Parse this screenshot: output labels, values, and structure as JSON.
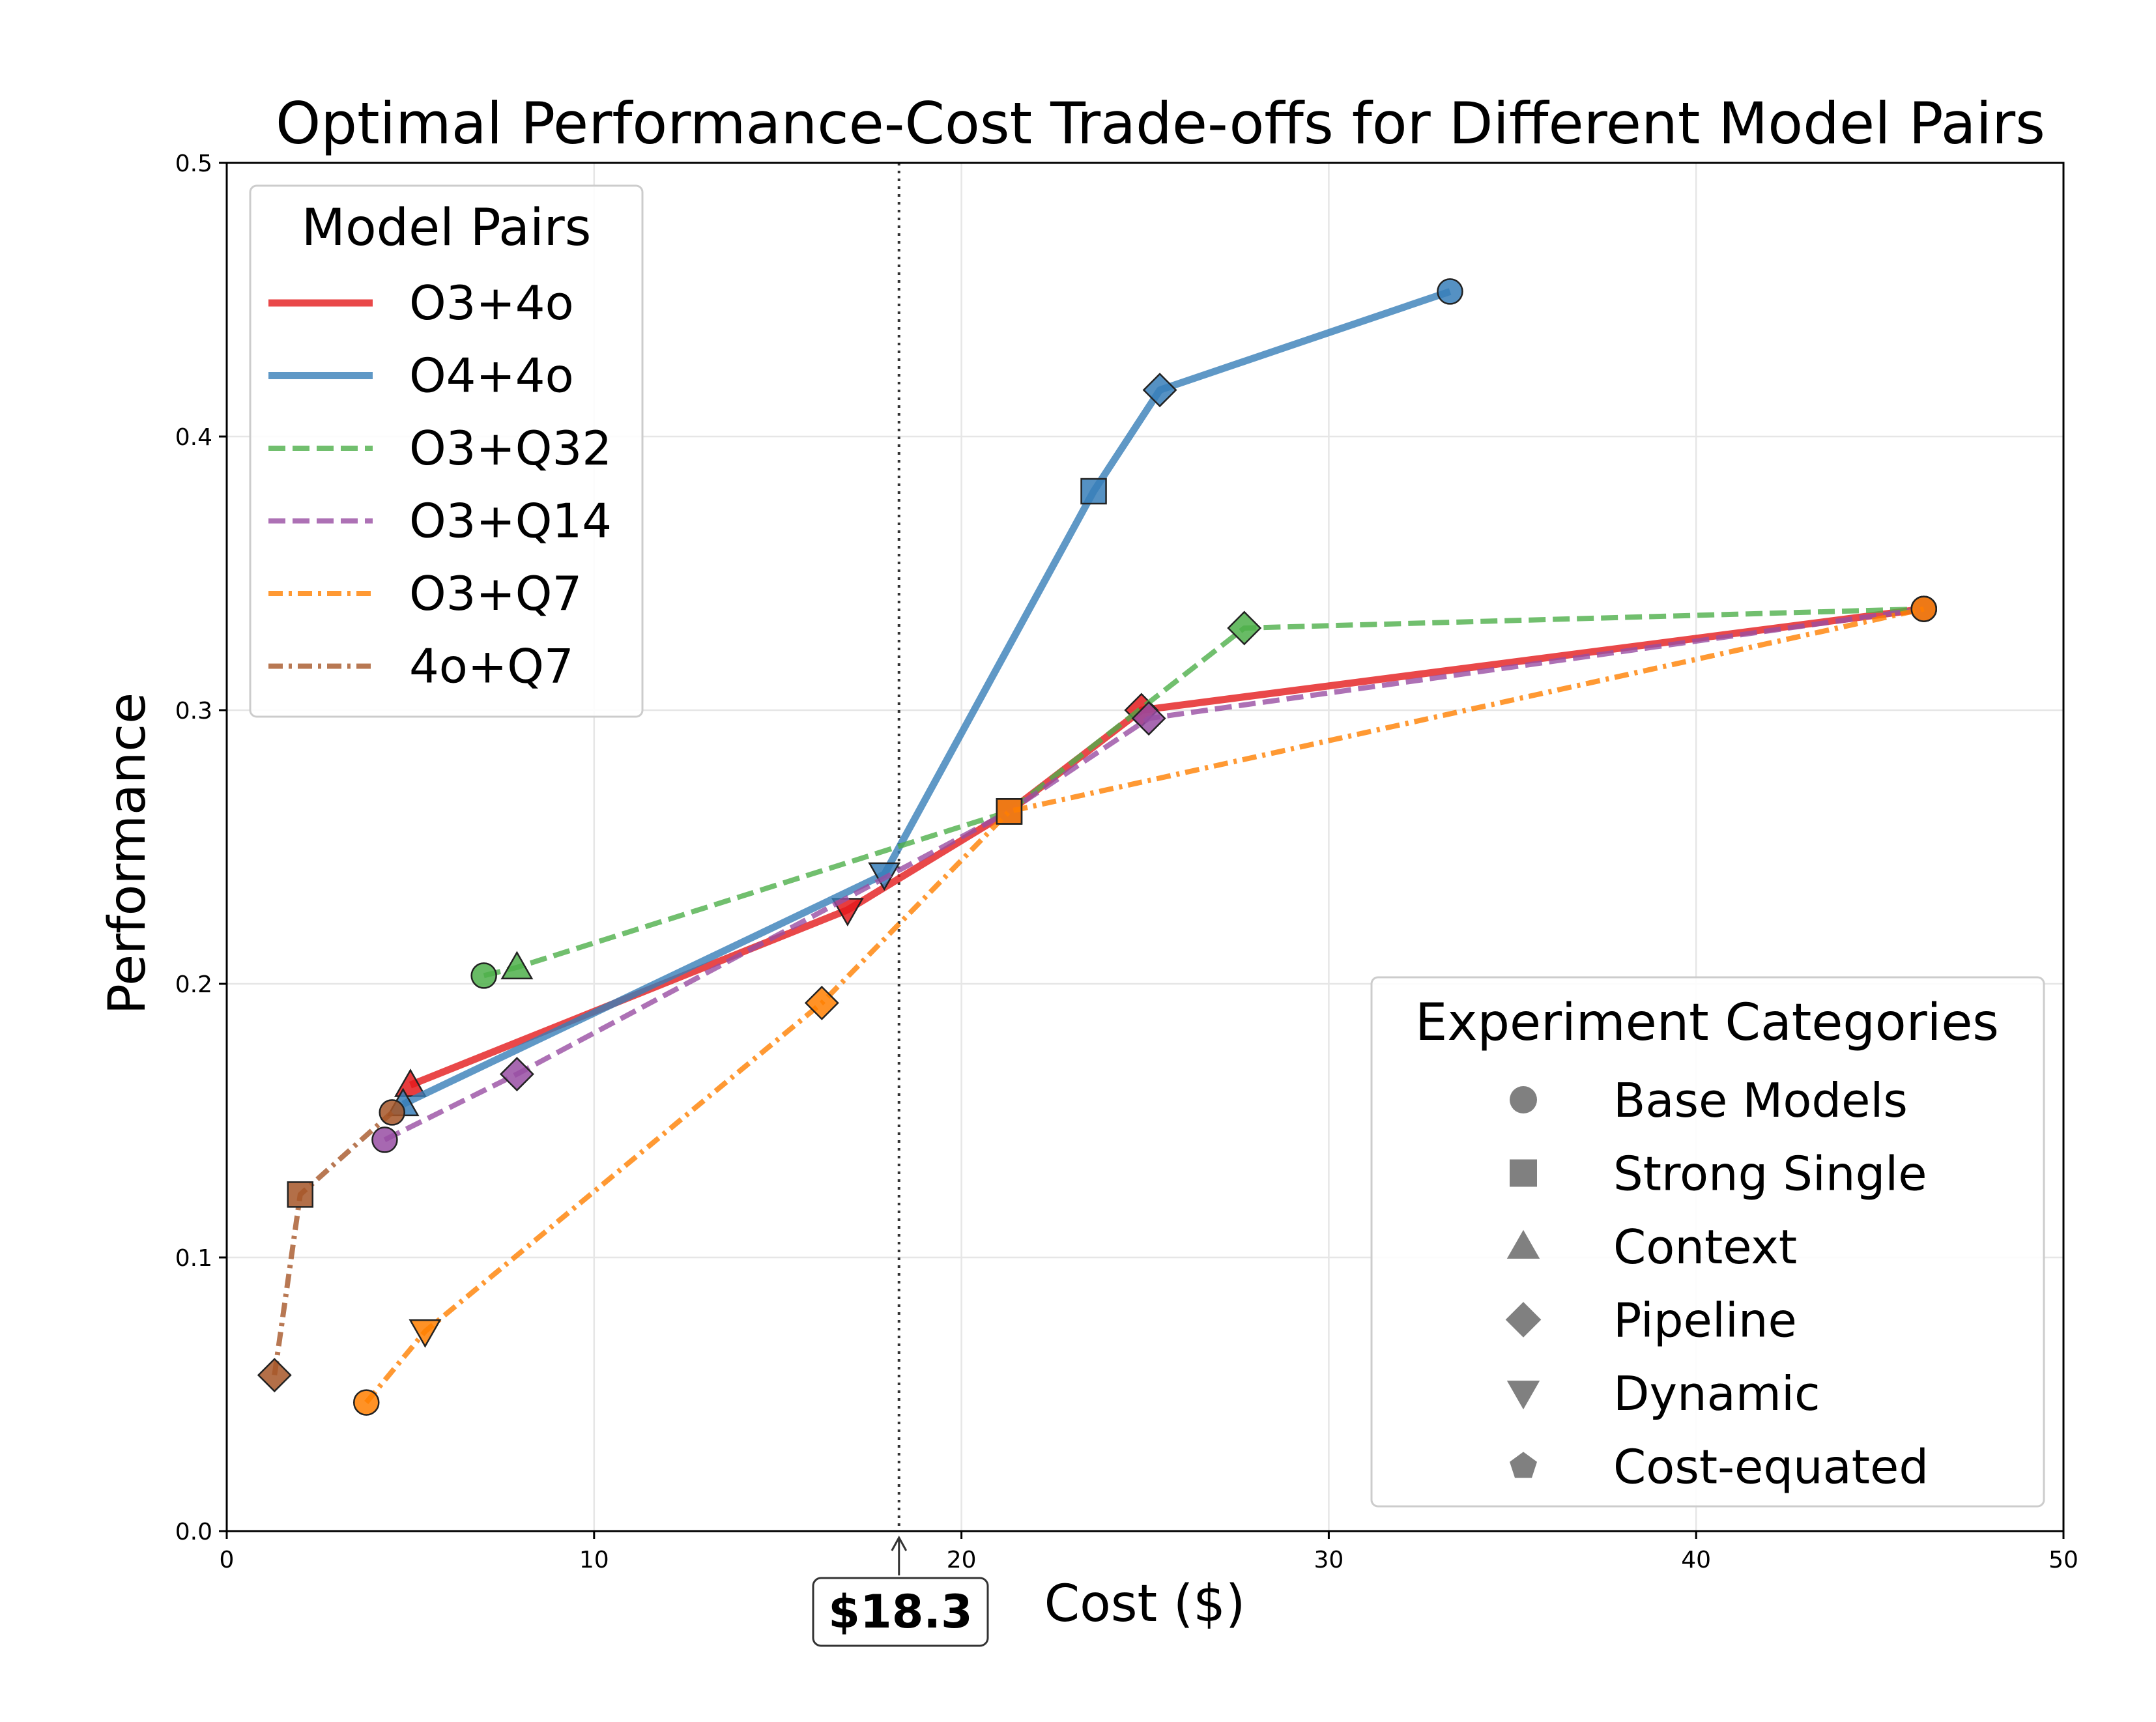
{
  "chart_data": {
    "type": "line",
    "title": "Optimal Performance-Cost Trade-offs for Different Model Pairs",
    "xlabel": "Cost ($)",
    "ylabel": "Performance",
    "xlim": [
      0,
      50
    ],
    "ylim": [
      0,
      0.5
    ],
    "xticks": [
      "0",
      "10",
      "20",
      "30",
      "40",
      "50"
    ],
    "yticks": [
      "0.0",
      "0.1",
      "0.2",
      "0.3",
      "0.4",
      "0.5"
    ],
    "grid": true,
    "threshold": {
      "x": 18.3,
      "label": "$18.3"
    },
    "series": [
      {
        "name": "O3+4o",
        "color": "#e41a1c",
        "dash": "solid",
        "points": [
          {
            "x": 5.0,
            "y": 0.163,
            "marker": "triangle-up"
          },
          {
            "x": 16.9,
            "y": 0.227,
            "marker": "triangle-down"
          },
          {
            "x": 21.3,
            "y": 0.263,
            "marker": "square"
          },
          {
            "x": 24.9,
            "y": 0.3,
            "marker": "diamond"
          },
          {
            "x": 46.2,
            "y": 0.337,
            "marker": "circle"
          }
        ]
      },
      {
        "name": "O4+4o",
        "color": "#377eb8",
        "dash": "solid",
        "points": [
          {
            "x": 4.8,
            "y": 0.156,
            "marker": "triangle-up"
          },
          {
            "x": 17.9,
            "y": 0.24,
            "marker": "triangle-down"
          },
          {
            "x": 23.6,
            "y": 0.38,
            "marker": "square"
          },
          {
            "x": 25.4,
            "y": 0.417,
            "marker": "diamond"
          },
          {
            "x": 33.3,
            "y": 0.453,
            "marker": "circle"
          }
        ]
      },
      {
        "name": "O3+Q32",
        "color": "#4daf4a",
        "dash": "dashed",
        "points": [
          {
            "x": 7.0,
            "y": 0.203,
            "marker": "circle"
          },
          {
            "x": 7.9,
            "y": 0.206,
            "marker": "triangle-up"
          },
          {
            "x": 21.3,
            "y": 0.263,
            "marker": "square"
          },
          {
            "x": 27.7,
            "y": 0.33,
            "marker": "diamond"
          },
          {
            "x": 46.2,
            "y": 0.337,
            "marker": "circle"
          }
        ]
      },
      {
        "name": "O3+Q14",
        "color": "#984ea3",
        "dash": "dashed",
        "points": [
          {
            "x": 4.3,
            "y": 0.143,
            "marker": "circle"
          },
          {
            "x": 7.9,
            "y": 0.167,
            "marker": "diamond"
          },
          {
            "x": 21.3,
            "y": 0.263,
            "marker": "square"
          },
          {
            "x": 25.1,
            "y": 0.297,
            "marker": "diamond"
          },
          {
            "x": 46.2,
            "y": 0.337,
            "marker": "circle"
          }
        ]
      },
      {
        "name": "O3+Q7",
        "color": "#ff7f00",
        "dash": "dashdot",
        "points": [
          {
            "x": 3.8,
            "y": 0.047,
            "marker": "circle"
          },
          {
            "x": 5.4,
            "y": 0.073,
            "marker": "triangle-down"
          },
          {
            "x": 16.2,
            "y": 0.193,
            "marker": "diamond"
          },
          {
            "x": 21.3,
            "y": 0.263,
            "marker": "square"
          },
          {
            "x": 46.2,
            "y": 0.337,
            "marker": "circle"
          }
        ]
      },
      {
        "name": "4o+Q7",
        "color": "#a65628",
        "dash": "dashdot",
        "points": [
          {
            "x": 1.3,
            "y": 0.057,
            "marker": "diamond"
          },
          {
            "x": 2.0,
            "y": 0.123,
            "marker": "square"
          },
          {
            "x": 4.5,
            "y": 0.153,
            "marker": "circle"
          }
        ]
      }
    ],
    "legend_pairs": {
      "title": "Model Pairs",
      "position": "top-left"
    },
    "legend_categories": {
      "title": "Experiment Categories",
      "position": "bottom-right",
      "items": [
        {
          "label": "Base Models",
          "marker": "circle"
        },
        {
          "label": "Strong Single",
          "marker": "square"
        },
        {
          "label": "Context",
          "marker": "triangle-up"
        },
        {
          "label": "Pipeline",
          "marker": "diamond"
        },
        {
          "label": "Dynamic",
          "marker": "triangle-down"
        },
        {
          "label": "Cost-equated",
          "marker": "pentagon"
        }
      ]
    }
  }
}
